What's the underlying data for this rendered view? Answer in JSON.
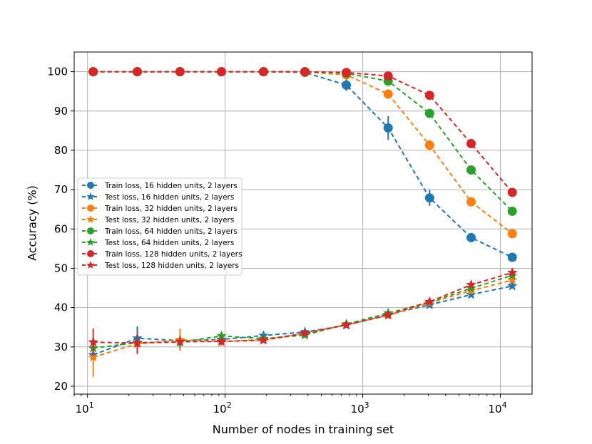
{
  "chart_data": {
    "type": "line",
    "title": "",
    "xlabel": "Number of nodes in training set",
    "ylabel": "Accuracy (%)",
    "xscale": "log",
    "xlim": [
      8,
      17000
    ],
    "ylim": [
      18,
      105
    ],
    "grid": true,
    "legend_position": "center-left",
    "x_ticks": [
      {
        "value": 10,
        "base": "10",
        "exp": "1"
      },
      {
        "value": 100,
        "base": "10",
        "exp": "2"
      },
      {
        "value": 1000,
        "base": "10",
        "exp": "3"
      },
      {
        "value": 10000,
        "base": "10",
        "exp": "4"
      }
    ],
    "y_ticks": [
      20,
      30,
      40,
      50,
      60,
      70,
      80,
      90,
      100
    ],
    "x": [
      11,
      23,
      47,
      94,
      190,
      380,
      760,
      1530,
      3060,
      6130,
      12200
    ],
    "series": [
      {
        "name": "Train loss, 16 hidden units, 2 layers",
        "color": "#1f77b4",
        "marker": "circle",
        "values": [
          100,
          100,
          100,
          100,
          100,
          99.8,
          96.6,
          85.7,
          67.9,
          57.8,
          52.8
        ],
        "errors": [
          0,
          0,
          0,
          0,
          0,
          0.3,
          1.5,
          3.0,
          2.0,
          1.2,
          0.6
        ]
      },
      {
        "name": "Test loss, 16 hidden units, 2 layers",
        "color": "#1f77b4",
        "marker": "star",
        "values": [
          28.0,
          32.2,
          31.6,
          31.9,
          32.9,
          33.8,
          35.5,
          38.2,
          40.7,
          43.3,
          45.5
        ],
        "errors": [
          1.0,
          3.0,
          0.8,
          0.8,
          0.6,
          0.5,
          0.4,
          0.4,
          0.4,
          0.4,
          0.5
        ]
      },
      {
        "name": "Train loss, 32 hidden units, 2 layers",
        "color": "#ff7f0e",
        "marker": "circle",
        "values": [
          100,
          100,
          100,
          100,
          100,
          99.9,
          99.2,
          94.3,
          81.3,
          66.9,
          58.8
        ],
        "errors": [
          0,
          0,
          0,
          0,
          0,
          0.2,
          0.5,
          1.2,
          1.3,
          1.0,
          0.7
        ]
      },
      {
        "name": "Test loss, 32 hidden units, 2 layers",
        "color": "#ff7f0e",
        "marker": "star",
        "values": [
          27.4,
          30.8,
          31.8,
          31.3,
          31.9,
          33.4,
          35.7,
          38.0,
          41.2,
          44.3,
          47.0
        ],
        "errors": [
          5.0,
          1.5,
          2.8,
          1.0,
          0.6,
          0.6,
          0.5,
          0.4,
          0.4,
          0.4,
          0.5
        ]
      },
      {
        "name": "Train loss, 64 hidden units, 2 layers",
        "color": "#2ca02c",
        "marker": "circle",
        "values": [
          100,
          100,
          100,
          100,
          100,
          100,
          99.6,
          97.6,
          89.4,
          75.0,
          64.5
        ],
        "errors": [
          0,
          0,
          0,
          0,
          0,
          0,
          0.3,
          0.6,
          0.8,
          0.8,
          0.6
        ]
      },
      {
        "name": "Test loss, 64 hidden units, 2 layers",
        "color": "#2ca02c",
        "marker": "star",
        "values": [
          29.7,
          31.1,
          31.2,
          32.8,
          32.1,
          33.0,
          35.8,
          38.6,
          41.4,
          44.9,
          48.2
        ],
        "errors": [
          1.5,
          1.5,
          1.5,
          1.0,
          0.6,
          0.6,
          0.5,
          0.4,
          0.4,
          0.4,
          0.5
        ]
      },
      {
        "name": "Train loss, 128 hidden units, 2 layers",
        "color": "#d62728",
        "marker": "circle",
        "values": [
          100,
          100,
          100,
          100,
          100,
          100,
          99.8,
          98.9,
          94.0,
          81.7,
          69.3
        ],
        "errors": [
          0,
          0,
          0,
          0,
          0,
          0,
          0.2,
          0.5,
          0.6,
          0.7,
          0.6
        ]
      },
      {
        "name": "Test loss, 128 hidden units, 2 layers",
        "color": "#d62728",
        "marker": "star",
        "values": [
          31.2,
          31.0,
          31.3,
          31.4,
          31.7,
          33.5,
          35.6,
          38.1,
          41.5,
          45.8,
          48.9
        ],
        "errors": [
          3.5,
          2.8,
          1.0,
          0.8,
          0.6,
          0.6,
          0.5,
          0.4,
          0.4,
          0.4,
          0.5
        ]
      }
    ]
  }
}
